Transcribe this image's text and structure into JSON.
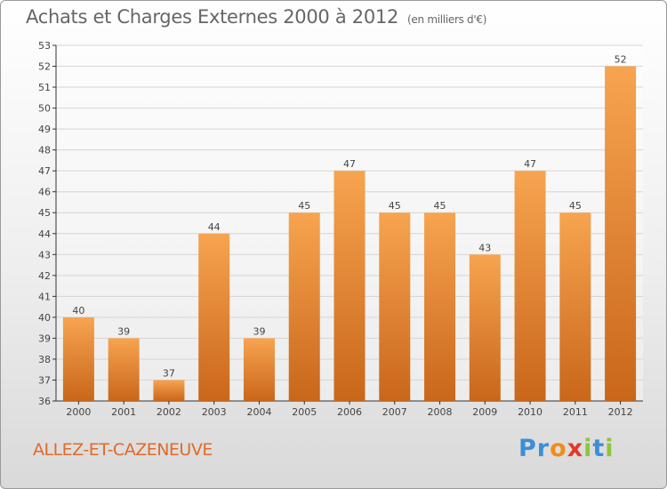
{
  "title": "Achats et Charges Externes 2000 à 2012",
  "unit": "(en milliers d'€)",
  "commune": "ALLEZ-ET-CAZENEUVE",
  "logo": {
    "text": "Proxiti",
    "letters": [
      {
        "ch": "P",
        "color": "#3b8fd9"
      },
      {
        "ch": "r",
        "color": "#3b8fd9"
      },
      {
        "ch": "o",
        "color": "#f08c1a"
      },
      {
        "ch": "x",
        "color": "#e03a2a"
      },
      {
        "ch": "i",
        "color": "#8cc63f"
      },
      {
        "ch": "t",
        "color": "#3b8fd9"
      },
      {
        "ch": "i",
        "color": "#8cc63f"
      }
    ]
  },
  "colors": {
    "bar_light": "#f7a450",
    "bar_dark": "#c9661a",
    "grid": "#d5d5d5",
    "axis": "#333333",
    "text": "#444444"
  },
  "chart_data": {
    "type": "bar",
    "categories": [
      "2000",
      "2001",
      "2002",
      "2003",
      "2004",
      "2005",
      "2006",
      "2007",
      "2008",
      "2009",
      "2010",
      "2011",
      "2012"
    ],
    "values": [
      40,
      39,
      37,
      44,
      39,
      45,
      47,
      45,
      45,
      43,
      47,
      45,
      52
    ],
    "ylim": [
      36,
      53
    ],
    "yticks": [
      36,
      37,
      38,
      39,
      40,
      41,
      42,
      43,
      44,
      45,
      46,
      47,
      48,
      49,
      50,
      51,
      52,
      53
    ],
    "grid": true,
    "data_labels": true
  }
}
